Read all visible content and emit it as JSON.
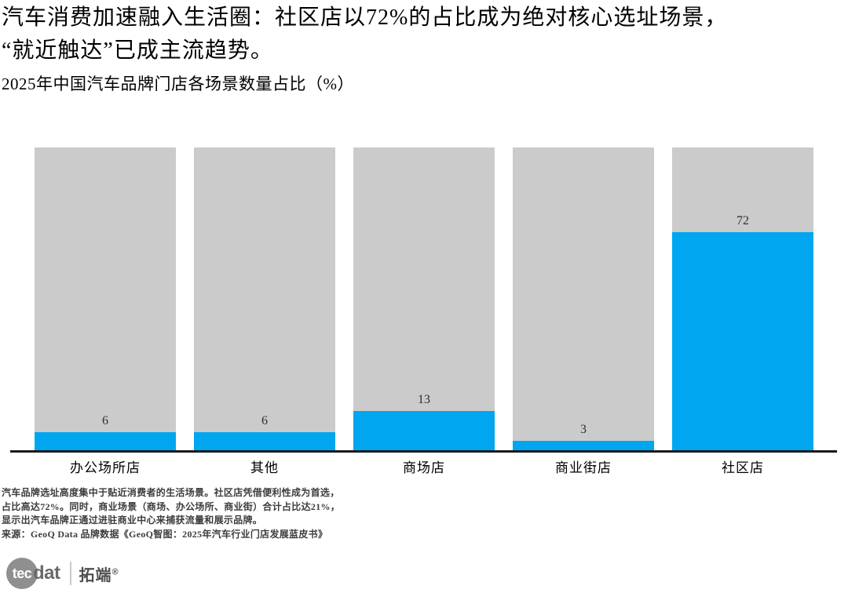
{
  "header": {
    "title_line1": "汽车消费加速融入生活圈：社区店以72%的占比成为绝对核心选址场景，",
    "title_line2": "“就近触达”已成主流趋势。",
    "subtitle": "2025年中国汽车品牌门店各场景数量占比（%）"
  },
  "chart_data": {
    "type": "bar",
    "title": "2025年中国汽车品牌门店各场景数量占比（%）",
    "categories": [
      "办公场所店",
      "其他",
      "商场店",
      "商业街店",
      "社区店"
    ],
    "values": [
      6,
      6,
      13,
      3,
      72
    ],
    "xlabel": "",
    "ylabel": "",
    "ylim": [
      0,
      100
    ],
    "grid": false,
    "legend": false,
    "value_labels_shown": true,
    "bar_color": "#00a6f0",
    "background_bar_color": "#cbcbcb",
    "axis_line_color": "#1a1a1a"
  },
  "notes": {
    "lines": [
      "汽车品牌选址高度集中于贴近消费者的生活场景。社区店凭借便利性成为首选，",
      "占比高达72%。同时，商业场景（商场、办公场所、商业街）合计占比达21%，",
      "显示出汽车品牌正通过进驻商业中心来捕获流量和展示品牌。",
      "来源：GeoQ Data 品牌数据《GeoQ智图：2025年汽车行业门店发展蓝皮书》"
    ]
  },
  "logo": {
    "circle_text": "tec",
    "suffix_text": "dat",
    "cjk_text": "拓端",
    "registered_mark": "®"
  }
}
